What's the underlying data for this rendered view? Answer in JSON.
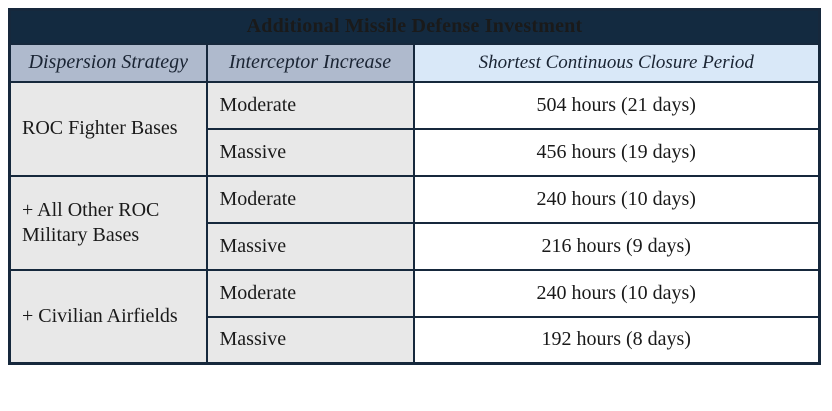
{
  "title": "Additional Missile Defense Investment",
  "columns": {
    "strategy": "Dispersion Strategy",
    "increase": "Interceptor Increase",
    "closure": "Shortest Continuous Closure Period"
  },
  "groups": [
    {
      "strategy": "ROC Fighter Bases",
      "rows": [
        {
          "increase": "Moderate",
          "closure": "504 hours (21 days)"
        },
        {
          "increase": "Massive",
          "closure": "456 hours (19 days)"
        }
      ]
    },
    {
      "strategy": "+ All Other ROC Military Bases",
      "rows": [
        {
          "increase": "Moderate",
          "closure": "240 hours (10 days)"
        },
        {
          "increase": "Massive",
          "closure": "216 hours (9 days)"
        }
      ]
    },
    {
      "strategy": "+ Civilian Airfields",
      "rows": [
        {
          "increase": "Moderate",
          "closure": "240 hours (10 days)"
        },
        {
          "increase": "Massive",
          "closure": "192 hours (8 days)"
        }
      ]
    }
  ],
  "colors": {
    "title_bar_bg": "#132A40",
    "title_text": "#FFFFFF",
    "header_left_bg": "#AFBACD",
    "header_right_bg": "#D9E8F8",
    "header_text": "#1A2433",
    "body_left_bg": "#E8E8E8",
    "body_right_bg": "#FFFFFF",
    "body_text": "#1A1A1A",
    "border": "#16283C"
  }
}
